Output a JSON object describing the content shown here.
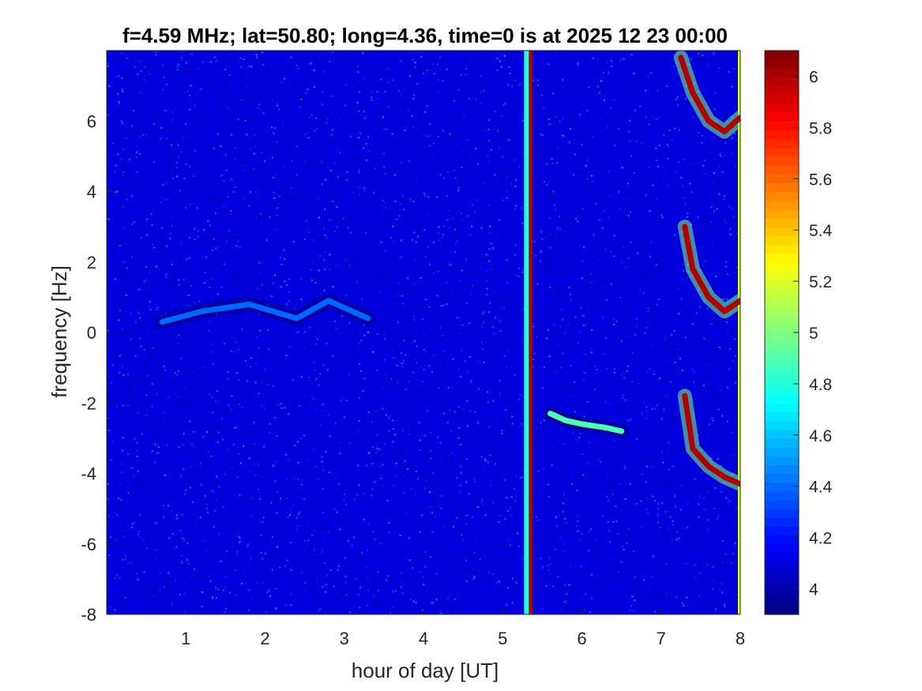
{
  "chart_data": {
    "type": "heatmap",
    "title": "f=4.59 MHz;  lat=50.80; long=4.36, time=0 is at 2025 12 23 00:00",
    "xlabel": "hour of day [UT]",
    "ylabel": "frequency [Hz]",
    "xlim": [
      0,
      8
    ],
    "ylim": [
      -8,
      8
    ],
    "xticks": [
      "1",
      "2",
      "3",
      "4",
      "5",
      "6",
      "7",
      "8"
    ],
    "yticks": [
      "-8",
      "-6",
      "-4",
      "-2",
      "0",
      "2",
      "4",
      "6"
    ],
    "colorbar": {
      "colormap": "jet",
      "clim": [
        3.9,
        6.1
      ],
      "ticks": [
        "4",
        "4.2",
        "4.4",
        "4.6",
        "4.8",
        "5",
        "5.2",
        "5.4",
        "5.6",
        "5.8",
        "6"
      ]
    },
    "background_level": 4.1,
    "features": [
      {
        "kind": "vertical_band",
        "x": 5.35,
        "level": 6.0
      },
      {
        "kind": "vertical_band",
        "x": 5.3,
        "level": 4.8
      },
      {
        "kind": "vertical_band",
        "x": 8.0,
        "level": 5.2
      },
      {
        "kind": "trace",
        "x": [
          0.7,
          1.2,
          1.8,
          2.4,
          2.8,
          3.3
        ],
        "y": [
          0.3,
          0.6,
          0.8,
          0.4,
          0.9,
          0.4
        ],
        "level": 4.4
      },
      {
        "kind": "trace",
        "x": [
          5.6,
          5.8,
          6.0,
          6.3,
          6.5
        ],
        "y": [
          -2.3,
          -2.5,
          -2.6,
          -2.7,
          -2.8
        ],
        "level": 4.9
      },
      {
        "kind": "trace",
        "x": [
          7.25,
          7.4,
          7.6,
          7.8,
          8.0
        ],
        "y": [
          7.8,
          6.8,
          6.0,
          5.7,
          6.1
        ],
        "level": 6.0
      },
      {
        "kind": "trace",
        "x": [
          7.3,
          7.4,
          7.6,
          7.8,
          8.0
        ],
        "y": [
          3.0,
          1.8,
          1.0,
          0.6,
          0.9
        ],
        "level": 6.0
      },
      {
        "kind": "trace",
        "x": [
          7.3,
          7.4,
          7.6,
          7.8,
          8.0
        ],
        "y": [
          -1.8,
          -3.3,
          -3.8,
          -4.1,
          -4.3
        ],
        "level": 6.0
      }
    ]
  }
}
